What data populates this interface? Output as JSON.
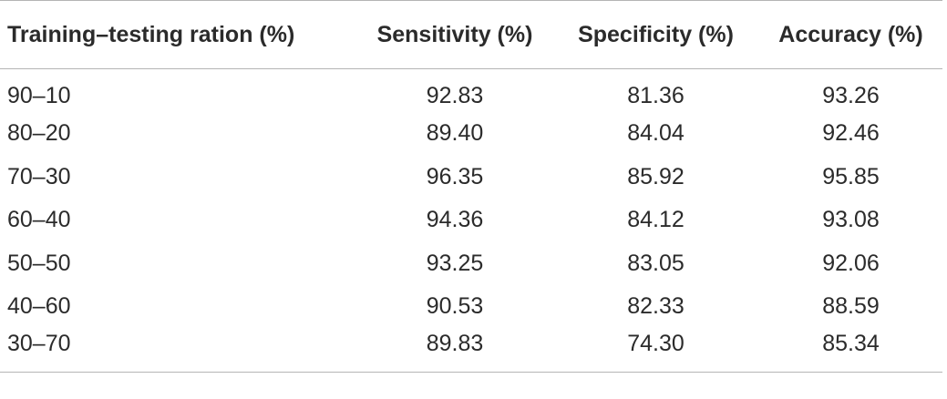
{
  "table": {
    "headers": [
      "Training–testing ration (%)",
      "Sensitivity (%)",
      "Specificity (%)",
      "Accuracy (%)"
    ],
    "rows": [
      [
        "90–10",
        "92.83",
        "81.36",
        "93.26"
      ],
      [
        "80–20",
        "89.40",
        "84.04",
        "92.46"
      ],
      [
        "70–30",
        "96.35",
        "85.92",
        "95.85"
      ],
      [
        "60–40",
        "94.36",
        "84.12",
        "93.08"
      ],
      [
        "50–50",
        "93.25",
        "83.05",
        "92.06"
      ],
      [
        "40–60",
        "90.53",
        "82.33",
        "88.59"
      ],
      [
        "30–70",
        "89.83",
        "74.30",
        "85.34"
      ]
    ]
  }
}
